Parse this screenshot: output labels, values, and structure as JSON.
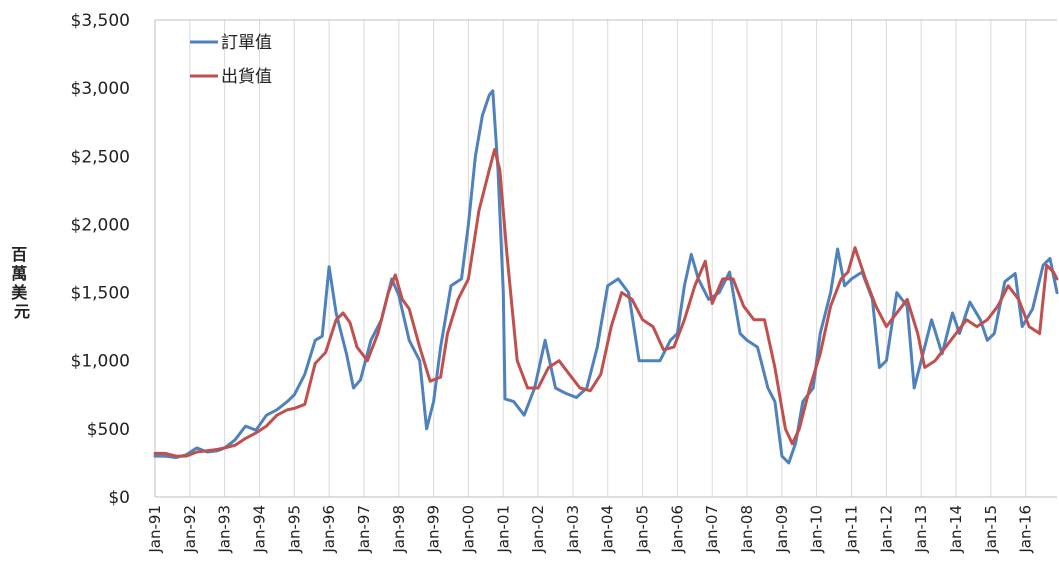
{
  "chart_data": {
    "type": "line",
    "ylabel": "百萬美元",
    "ylim": [
      0,
      3500
    ],
    "yticks": [
      0,
      500,
      1000,
      1500,
      2000,
      2500,
      3000,
      3500
    ],
    "ytick_labels": [
      "$0",
      "$500",
      "$1,000",
      "$1,500",
      "$2,000",
      "$2,500",
      "$3,000",
      "$3,500"
    ],
    "xlim": [
      1991.0,
      2016.9
    ],
    "xtick_labels": [
      "Jan-91",
      "Jan-92",
      "Jan-93",
      "Jan-94",
      "Jan-95",
      "Jan-96",
      "Jan-97",
      "Jan-98",
      "Jan-99",
      "Jan-00",
      "Jan-01",
      "Jan-02",
      "Jan-03",
      "Jan-04",
      "Jan-05",
      "Jan-06",
      "Jan-07",
      "Jan-08",
      "Jan-09",
      "Jan-10",
      "Jan-11",
      "Jan-12",
      "Jan-13",
      "Jan-14",
      "Jan-15",
      "Jan-16"
    ],
    "grid": "vertical",
    "legend_position": "top-left",
    "series": [
      {
        "name": "訂單值",
        "color": "#4f81bd",
        "points": [
          [
            1991.0,
            300
          ],
          [
            1991.3,
            300
          ],
          [
            1991.6,
            290
          ],
          [
            1991.9,
            310
          ],
          [
            1992.2,
            360
          ],
          [
            1992.5,
            330
          ],
          [
            1992.8,
            340
          ],
          [
            1993.0,
            360
          ],
          [
            1993.3,
            420
          ],
          [
            1993.6,
            520
          ],
          [
            1993.9,
            490
          ],
          [
            1994.2,
            600
          ],
          [
            1994.5,
            640
          ],
          [
            1994.8,
            700
          ],
          [
            1995.0,
            750
          ],
          [
            1995.3,
            900
          ],
          [
            1995.6,
            1150
          ],
          [
            1995.8,
            1180
          ],
          [
            1996.0,
            1690
          ],
          [
            1996.2,
            1350
          ],
          [
            1996.5,
            1050
          ],
          [
            1996.7,
            800
          ],
          [
            1996.9,
            860
          ],
          [
            1997.2,
            1150
          ],
          [
            1997.5,
            1300
          ],
          [
            1997.8,
            1600
          ],
          [
            1998.0,
            1480
          ],
          [
            1998.3,
            1150
          ],
          [
            1998.6,
            1000
          ],
          [
            1998.8,
            500
          ],
          [
            1999.0,
            700
          ],
          [
            1999.2,
            1100
          ],
          [
            1999.5,
            1550
          ],
          [
            1999.8,
            1600
          ],
          [
            2000.0,
            2000
          ],
          [
            2000.2,
            2500
          ],
          [
            2000.4,
            2800
          ],
          [
            2000.6,
            2950
          ],
          [
            2000.7,
            2980
          ],
          [
            2000.85,
            2400
          ],
          [
            2001.0,
            1500
          ],
          [
            2001.05,
            720
          ],
          [
            2001.3,
            700
          ],
          [
            2001.6,
            600
          ],
          [
            2001.9,
            800
          ],
          [
            2002.2,
            1150
          ],
          [
            2002.5,
            800
          ],
          [
            2002.8,
            760
          ],
          [
            2003.1,
            730
          ],
          [
            2003.4,
            800
          ],
          [
            2003.7,
            1100
          ],
          [
            2004.0,
            1550
          ],
          [
            2004.3,
            1600
          ],
          [
            2004.6,
            1500
          ],
          [
            2004.9,
            1000
          ],
          [
            2005.2,
            1000
          ],
          [
            2005.5,
            1000
          ],
          [
            2005.8,
            1150
          ],
          [
            2006.0,
            1200
          ],
          [
            2006.2,
            1550
          ],
          [
            2006.4,
            1780
          ],
          [
            2006.6,
            1600
          ],
          [
            2006.9,
            1450
          ],
          [
            2007.2,
            1500
          ],
          [
            2007.5,
            1650
          ],
          [
            2007.8,
            1200
          ],
          [
            2008.0,
            1150
          ],
          [
            2008.3,
            1100
          ],
          [
            2008.6,
            800
          ],
          [
            2008.8,
            700
          ],
          [
            2009.0,
            300
          ],
          [
            2009.2,
            250
          ],
          [
            2009.4,
            400
          ],
          [
            2009.6,
            700
          ],
          [
            2009.9,
            800
          ],
          [
            2010.1,
            1200
          ],
          [
            2010.4,
            1500
          ],
          [
            2010.6,
            1820
          ],
          [
            2010.8,
            1550
          ],
          [
            2011.0,
            1600
          ],
          [
            2011.3,
            1650
          ],
          [
            2011.6,
            1450
          ],
          [
            2011.8,
            950
          ],
          [
            2012.0,
            1000
          ],
          [
            2012.3,
            1500
          ],
          [
            2012.6,
            1400
          ],
          [
            2012.8,
            800
          ],
          [
            2013.0,
            1000
          ],
          [
            2013.3,
            1300
          ],
          [
            2013.6,
            1050
          ],
          [
            2013.9,
            1350
          ],
          [
            2014.1,
            1200
          ],
          [
            2014.4,
            1430
          ],
          [
            2014.7,
            1300
          ],
          [
            2014.9,
            1150
          ],
          [
            2015.1,
            1200
          ],
          [
            2015.4,
            1580
          ],
          [
            2015.7,
            1640
          ],
          [
            2015.9,
            1250
          ],
          [
            2016.2,
            1380
          ],
          [
            2016.5,
            1700
          ],
          [
            2016.7,
            1750
          ],
          [
            2016.9,
            1500
          ]
        ]
      },
      {
        "name": "出貨值",
        "color": "#c0504d",
        "points": [
          [
            1991.0,
            320
          ],
          [
            1991.3,
            320
          ],
          [
            1991.6,
            300
          ],
          [
            1991.9,
            300
          ],
          [
            1992.2,
            330
          ],
          [
            1992.5,
            340
          ],
          [
            1992.8,
            350
          ],
          [
            1993.0,
            360
          ],
          [
            1993.3,
            380
          ],
          [
            1993.6,
            430
          ],
          [
            1993.9,
            470
          ],
          [
            1994.2,
            520
          ],
          [
            1994.5,
            600
          ],
          [
            1994.8,
            640
          ],
          [
            1995.0,
            650
          ],
          [
            1995.3,
            680
          ],
          [
            1995.6,
            980
          ],
          [
            1995.9,
            1060
          ],
          [
            1996.2,
            1300
          ],
          [
            1996.4,
            1350
          ],
          [
            1996.6,
            1280
          ],
          [
            1996.8,
            1100
          ],
          [
            1997.1,
            1000
          ],
          [
            1997.4,
            1200
          ],
          [
            1997.7,
            1500
          ],
          [
            1997.9,
            1630
          ],
          [
            1998.1,
            1450
          ],
          [
            1998.3,
            1380
          ],
          [
            1998.6,
            1100
          ],
          [
            1998.9,
            850
          ],
          [
            1999.2,
            880
          ],
          [
            1999.4,
            1200
          ],
          [
            1999.7,
            1450
          ],
          [
            2000.0,
            1600
          ],
          [
            2000.3,
            2100
          ],
          [
            2000.6,
            2400
          ],
          [
            2000.75,
            2550
          ],
          [
            2000.9,
            2400
          ],
          [
            2001.1,
            1800
          ],
          [
            2001.4,
            1000
          ],
          [
            2001.7,
            800
          ],
          [
            2002.0,
            800
          ],
          [
            2002.3,
            950
          ],
          [
            2002.6,
            1000
          ],
          [
            2002.9,
            900
          ],
          [
            2003.2,
            800
          ],
          [
            2003.5,
            780
          ],
          [
            2003.8,
            900
          ],
          [
            2004.1,
            1250
          ],
          [
            2004.4,
            1500
          ],
          [
            2004.7,
            1450
          ],
          [
            2005.0,
            1300
          ],
          [
            2005.3,
            1250
          ],
          [
            2005.6,
            1080
          ],
          [
            2005.9,
            1100
          ],
          [
            2006.2,
            1300
          ],
          [
            2006.5,
            1550
          ],
          [
            2006.8,
            1730
          ],
          [
            2007.0,
            1420
          ],
          [
            2007.3,
            1600
          ],
          [
            2007.6,
            1600
          ],
          [
            2007.9,
            1400
          ],
          [
            2008.2,
            1300
          ],
          [
            2008.5,
            1300
          ],
          [
            2008.8,
            950
          ],
          [
            2009.1,
            500
          ],
          [
            2009.3,
            390
          ],
          [
            2009.5,
            500
          ],
          [
            2009.8,
            800
          ],
          [
            2010.1,
            1050
          ],
          [
            2010.4,
            1400
          ],
          [
            2010.7,
            1600
          ],
          [
            2010.9,
            1650
          ],
          [
            2011.1,
            1830
          ],
          [
            2011.4,
            1600
          ],
          [
            2011.7,
            1400
          ],
          [
            2012.0,
            1250
          ],
          [
            2012.3,
            1350
          ],
          [
            2012.6,
            1450
          ],
          [
            2012.9,
            1200
          ],
          [
            2013.1,
            950
          ],
          [
            2013.4,
            1000
          ],
          [
            2013.7,
            1100
          ],
          [
            2014.0,
            1200
          ],
          [
            2014.3,
            1300
          ],
          [
            2014.6,
            1250
          ],
          [
            2014.9,
            1300
          ],
          [
            2015.2,
            1400
          ],
          [
            2015.5,
            1550
          ],
          [
            2015.8,
            1450
          ],
          [
            2016.1,
            1250
          ],
          [
            2016.4,
            1200
          ],
          [
            2016.6,
            1700
          ],
          [
            2016.8,
            1650
          ],
          [
            2016.9,
            1600
          ]
        ]
      }
    ]
  }
}
